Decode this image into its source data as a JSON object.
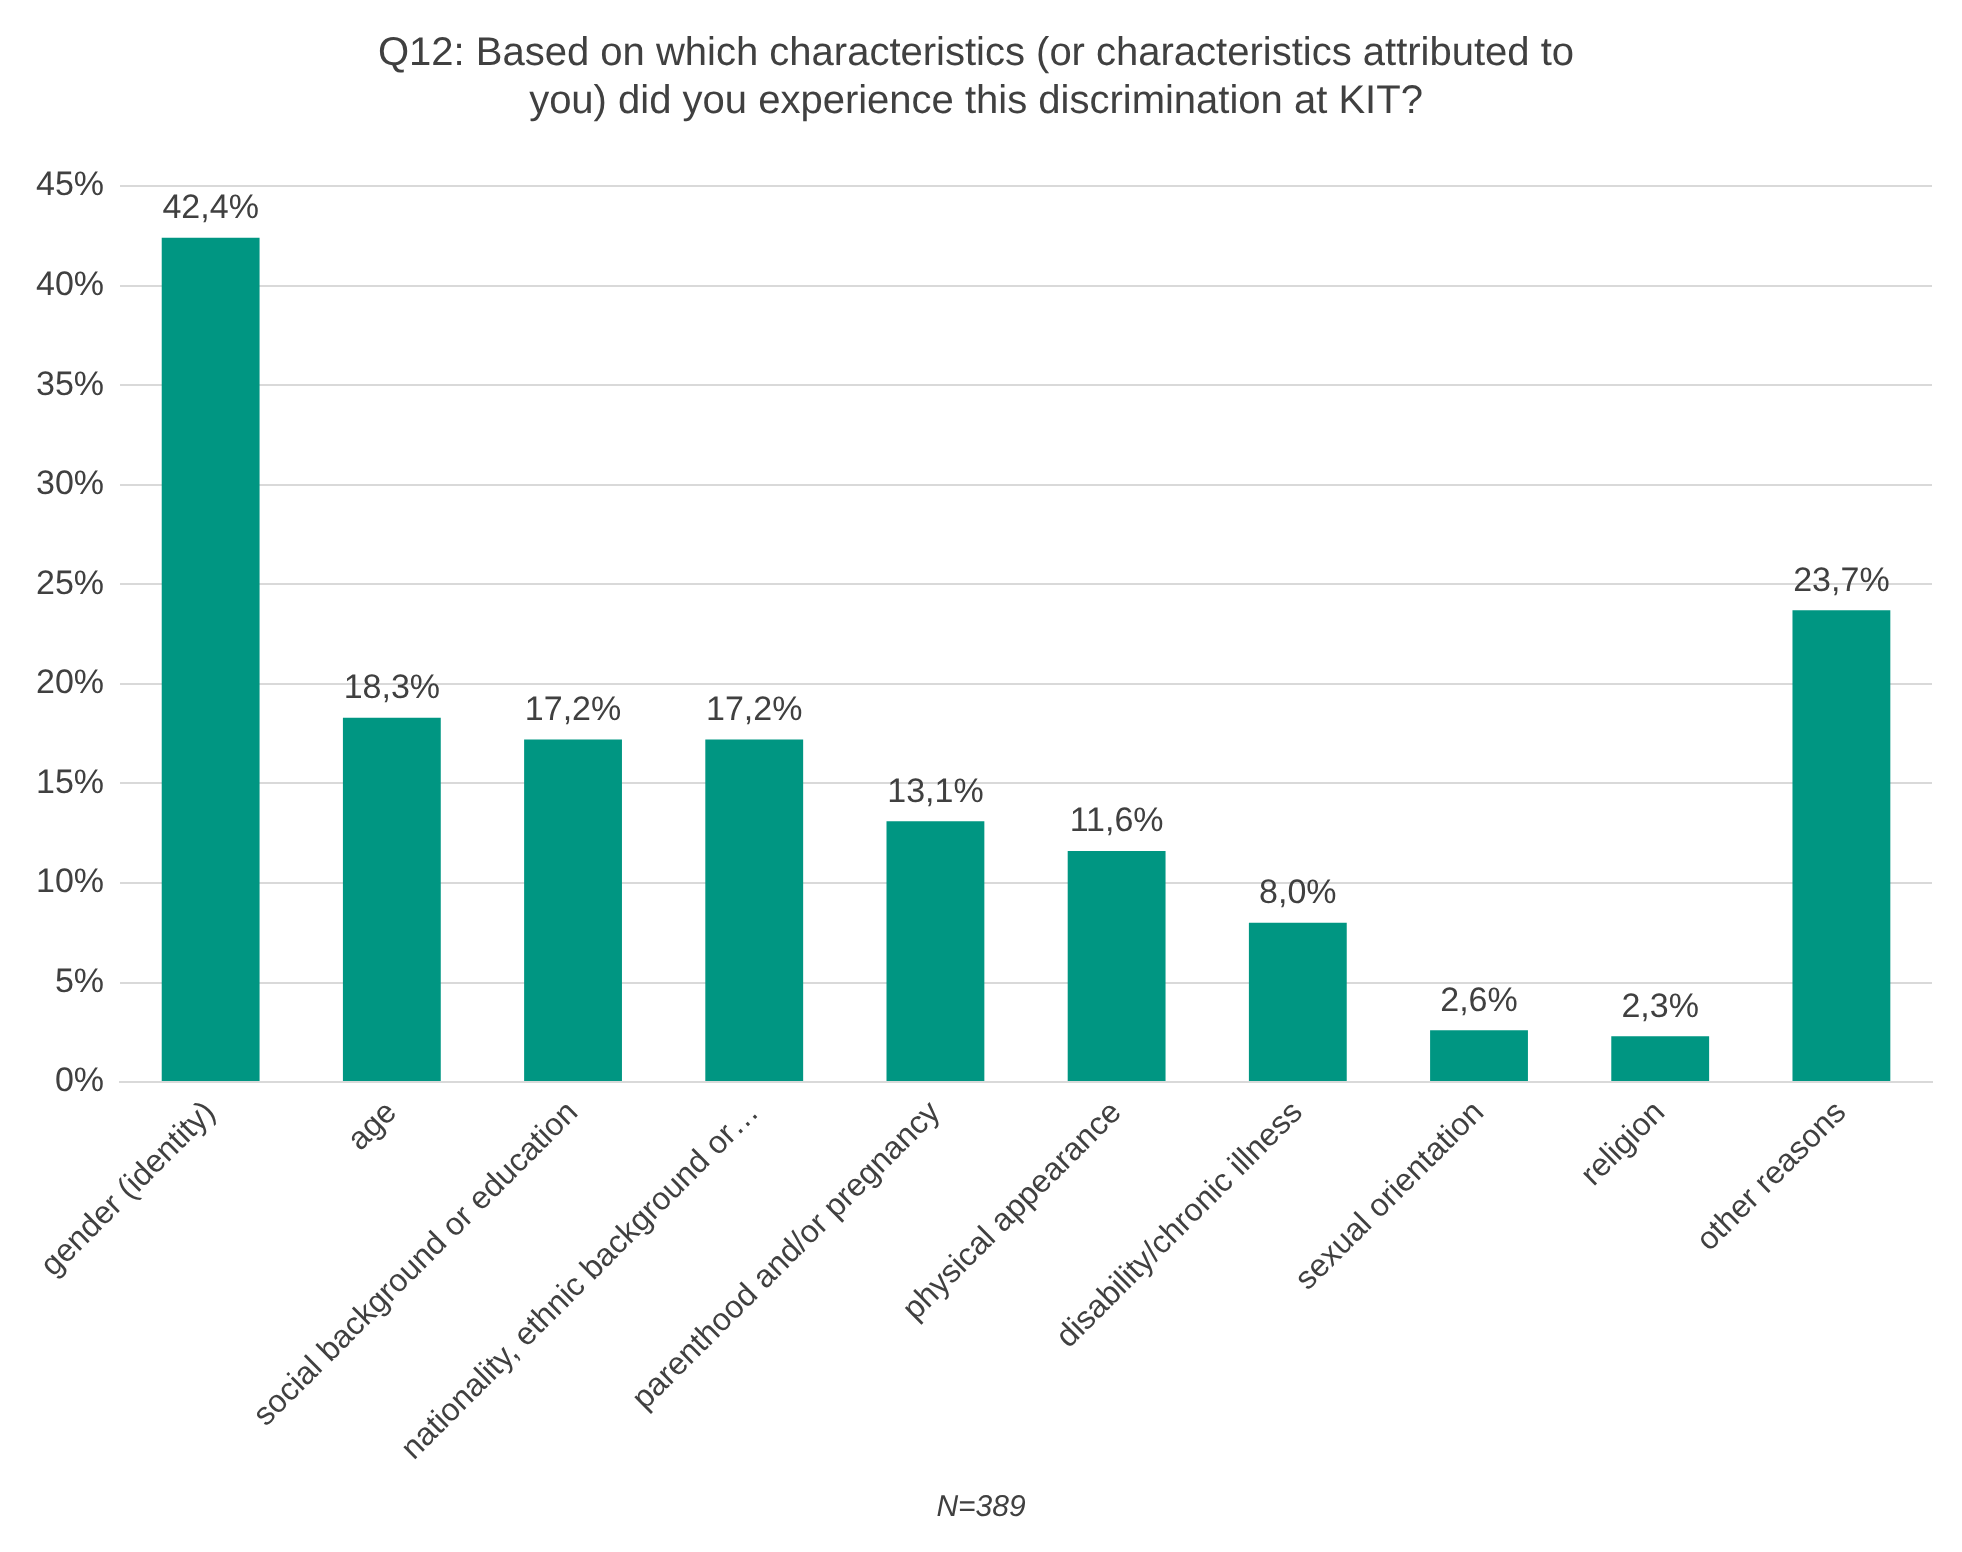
{
  "chart_data": {
    "type": "bar",
    "title": "Q12: Based on which characteristics (or characteristics attributed to you) did you experience this discrimination at KIT?",
    "categories": [
      "gender (identity)",
      "age",
      "social background or education",
      "nationality, ethnic background or…",
      "parenthood and/or pregnancy",
      "physical appearance",
      "disability/chronic illness",
      "sexual orientation",
      "religion",
      "other reasons"
    ],
    "values": [
      42.4,
      18.3,
      17.2,
      17.2,
      13.1,
      11.6,
      8.0,
      2.6,
      2.3,
      23.7
    ],
    "value_labels": [
      "42,4%",
      "18,3%",
      "17,2%",
      "17,2%",
      "13,1%",
      "11,6%",
      "8,0%",
      "2,6%",
      "2,3%",
      "23,7%"
    ],
    "color": "#009682",
    "ylim": [
      0,
      45
    ],
    "yticks": [
      {
        "value": 0,
        "label": "0%"
      },
      {
        "value": 5,
        "label": "5%"
      },
      {
        "value": 10,
        "label": "10%"
      },
      {
        "value": 15,
        "label": "15%"
      },
      {
        "value": 20,
        "label": "20%"
      },
      {
        "value": 25,
        "label": "25%"
      },
      {
        "value": 30,
        "label": "30%"
      },
      {
        "value": 35,
        "label": "35%"
      },
      {
        "value": 40,
        "label": "40%"
      },
      {
        "value": 45,
        "label": "45%"
      }
    ],
    "grid": "y",
    "legend": false,
    "annotations": [
      "N=389"
    ]
  }
}
